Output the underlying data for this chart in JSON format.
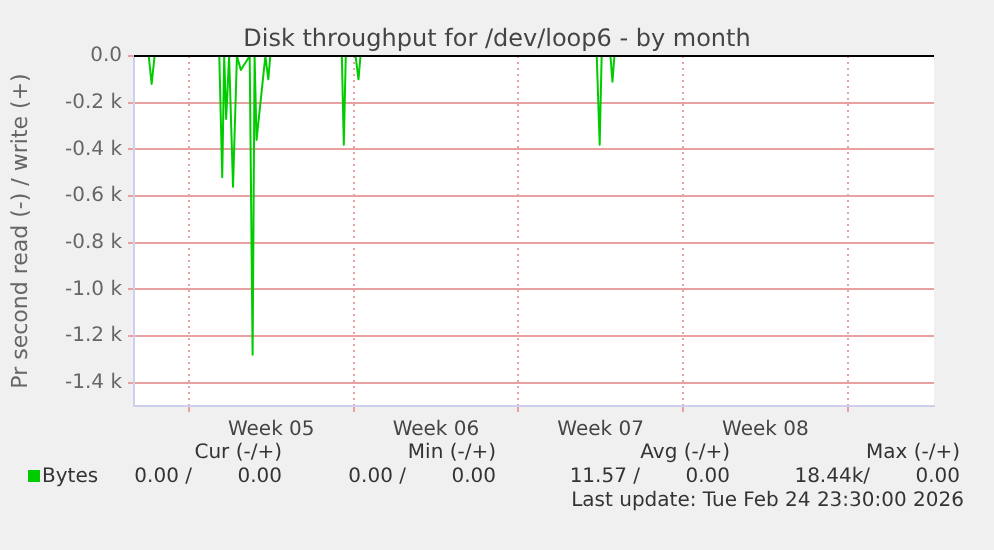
{
  "chart_data": {
    "type": "line",
    "title": "Disk throughput for /dev/loop6 - by month",
    "ylabel": "Pr second read (-) / write (+)",
    "x": [
      "2026-01-23T16:00",
      "2026-01-24T07:00",
      "2026-01-24T10:00",
      "2026-01-24T13:00",
      "2026-01-27T07:00",
      "2026-01-27T10:00",
      "2026-01-27T12:00",
      "2026-01-27T14:00",
      "2026-01-27T17:00",
      "2026-01-27T21:00",
      "2026-01-28T01:00",
      "2026-01-28T05:00",
      "2026-01-28T14:00",
      "2026-01-28T17:00",
      "2026-01-28T19:00",
      "2026-01-28T21:00",
      "2026-01-29T06:00",
      "2026-01-29T09:00",
      "2026-01-29T11:00",
      "2026-02-01T12:00",
      "2026-02-01T14:00",
      "2026-02-01T16:00",
      "2026-02-02T02:00",
      "2026-02-02T05:00",
      "2026-02-02T07:00",
      "2026-02-12T08:00",
      "2026-02-12T11:00",
      "2026-02-12T13:00",
      "2026-02-12T22:00",
      "2026-02-13T00:00",
      "2026-02-13T02:00",
      "2026-02-26T16:00"
    ],
    "series": [
      {
        "name": "Bytes",
        "color": "#00cc00",
        "values": [
          0,
          0,
          -120,
          0,
          0,
          -520,
          0,
          -270,
          0,
          -560,
          0,
          -60,
          0,
          -1280,
          0,
          -360,
          0,
          -100,
          0,
          0,
          -380,
          0,
          0,
          -100,
          0,
          0,
          -380,
          0,
          0,
          -110,
          0,
          0
        ]
      }
    ],
    "xlim": [
      "2026-01-23T16:00",
      "2026-02-26T16:00"
    ],
    "xticks": [
      {
        "value": "2026-01-26",
        "label": null
      },
      {
        "value": "2026-01-29T12:00",
        "label": "Week 05"
      },
      {
        "value": "2026-02-02",
        "label": null
      },
      {
        "value": "2026-02-05T12:00",
        "label": "Week 06"
      },
      {
        "value": "2026-02-09",
        "label": null
      },
      {
        "value": "2026-02-12T12:00",
        "label": "Week 07"
      },
      {
        "value": "2026-02-16",
        "label": null
      },
      {
        "value": "2026-02-19T12:00",
        "label": "Week 08"
      },
      {
        "value": "2026-02-23",
        "label": null
      }
    ],
    "ylim": [
      -1500,
      0
    ],
    "yticks": [
      {
        "value": -1400,
        "label": "-1.4 k"
      },
      {
        "value": -1200,
        "label": "-1.2 k"
      },
      {
        "value": -1000,
        "label": "-1.0 k"
      },
      {
        "value": -800,
        "label": "-0.8 k"
      },
      {
        "value": -600,
        "label": "-0.6 k"
      },
      {
        "value": -400,
        "label": "-0.4 k"
      },
      {
        "value": -200,
        "label": "-0.2 k"
      },
      {
        "value": 0,
        "label": "0.0"
      }
    ],
    "ref_lines": [
      {
        "axis": "y",
        "value": 0,
        "label": null,
        "color": "#000000"
      }
    ],
    "grid": true,
    "legend": "bottom left",
    "marker": "none",
    "line_style": "solid",
    "annotations": [
      "Cur (-/+)",
      "0.00 /",
      "0.00",
      "Min (-/+)",
      "0.00 /",
      "0.00",
      "Avg (-/+)",
      "11.57 /",
      "0.00",
      "Max (-/+)",
      "18.44k/",
      "0.00",
      "Last update: Tue Feb 24 23:30:00 2026"
    ]
  }
}
